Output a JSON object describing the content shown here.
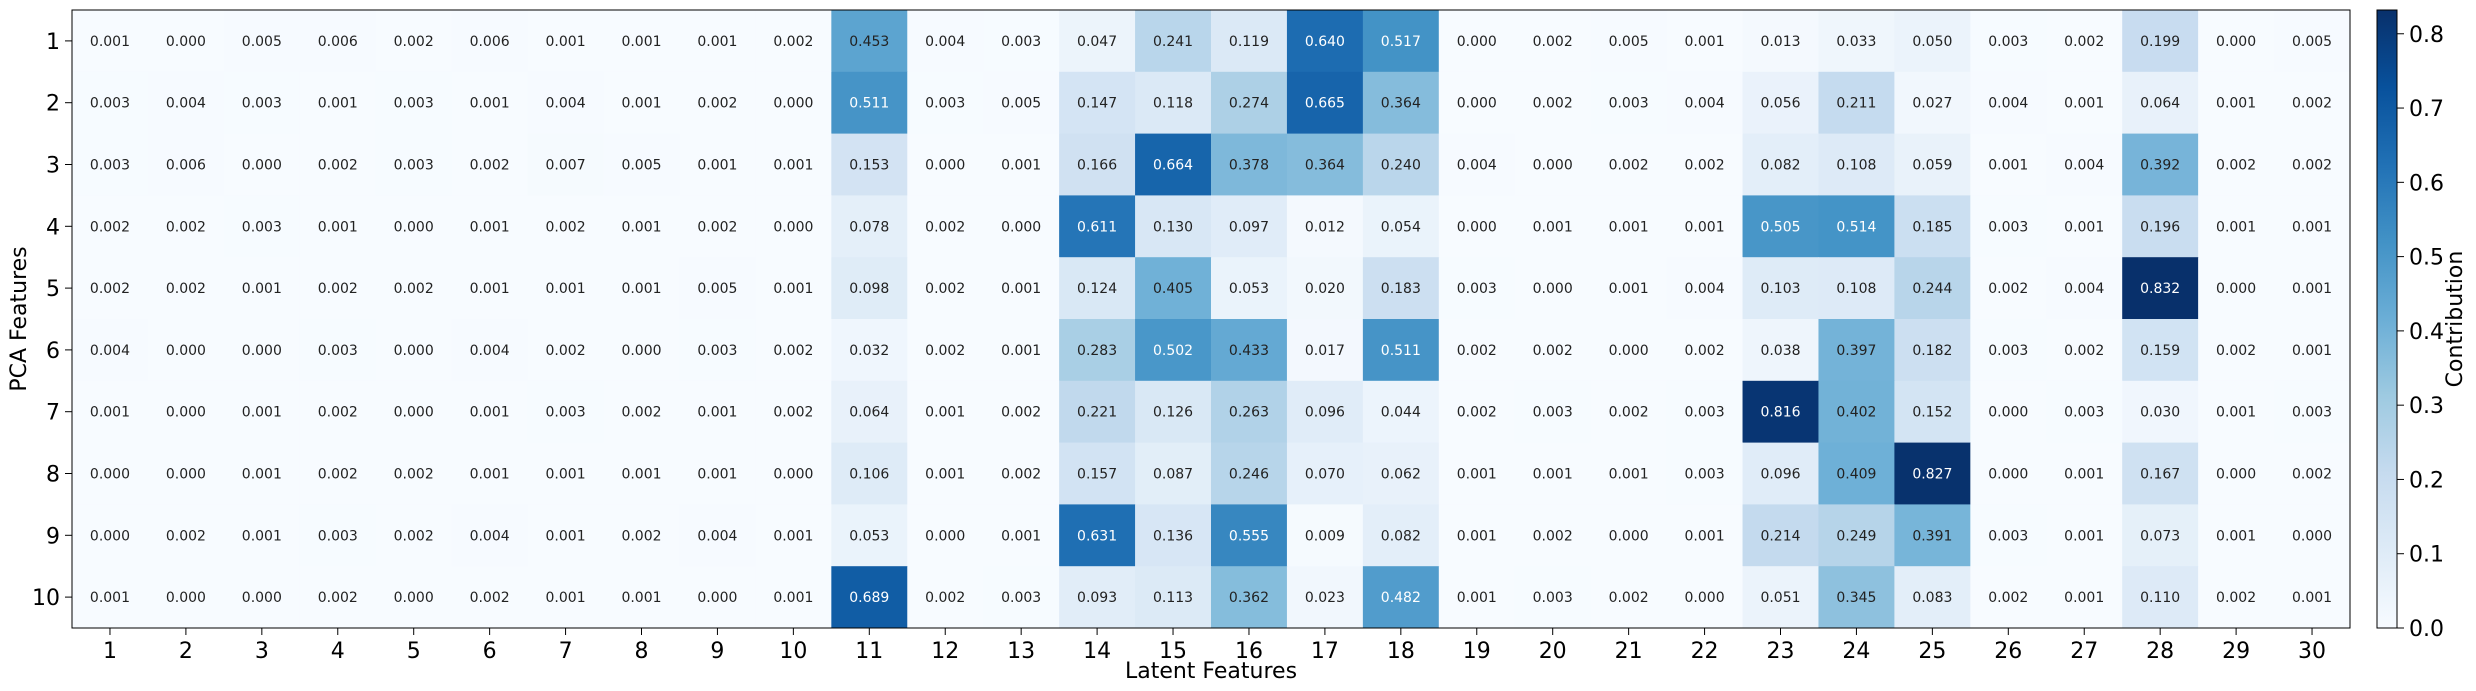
{
  "chart_data": {
    "type": "heatmap",
    "xlabel": "Latent Features",
    "ylabel": "PCA Features",
    "colorbar_label": "Contribution",
    "x_categories": [
      "1",
      "2",
      "3",
      "4",
      "5",
      "6",
      "7",
      "8",
      "9",
      "10",
      "11",
      "12",
      "13",
      "14",
      "15",
      "16",
      "17",
      "18",
      "19",
      "20",
      "21",
      "22",
      "23",
      "24",
      "25",
      "26",
      "27",
      "28",
      "29",
      "30"
    ],
    "y_categories": [
      "1",
      "2",
      "3",
      "4",
      "5",
      "6",
      "7",
      "8",
      "9",
      "10"
    ],
    "colorbar_ticks": [
      "0.0",
      "0.1",
      "0.2",
      "0.3",
      "0.4",
      "0.5",
      "0.6",
      "0.7",
      "0.8"
    ],
    "vmin": 0.0,
    "vmax": 0.832,
    "colormap": [
      "#f7fbff",
      "#deebf7",
      "#c6dbef",
      "#9ecae1",
      "#6baed6",
      "#4292c6",
      "#2171b5",
      "#08519c",
      "#08306b"
    ],
    "values": [
      [
        "0.001",
        "0.000",
        "0.005",
        "0.006",
        "0.002",
        "0.006",
        "0.001",
        "0.001",
        "0.001",
        "0.002",
        "0.453",
        "0.004",
        "0.003",
        "0.047",
        "0.241",
        "0.119",
        "0.640",
        "0.517",
        "0.000",
        "0.002",
        "0.005",
        "0.001",
        "0.013",
        "0.033",
        "0.050",
        "0.003",
        "0.002",
        "0.199",
        "0.000",
        "0.005"
      ],
      [
        "0.003",
        "0.004",
        "0.003",
        "0.001",
        "0.003",
        "0.001",
        "0.004",
        "0.001",
        "0.002",
        "0.000",
        "0.511",
        "0.003",
        "0.005",
        "0.147",
        "0.118",
        "0.274",
        "0.665",
        "0.364",
        "0.000",
        "0.002",
        "0.003",
        "0.004",
        "0.056",
        "0.211",
        "0.027",
        "0.004",
        "0.001",
        "0.064",
        "0.001",
        "0.002"
      ],
      [
        "0.003",
        "0.006",
        "0.000",
        "0.002",
        "0.003",
        "0.002",
        "0.007",
        "0.005",
        "0.001",
        "0.001",
        "0.153",
        "0.000",
        "0.001",
        "0.166",
        "0.664",
        "0.378",
        "0.364",
        "0.240",
        "0.004",
        "0.000",
        "0.002",
        "0.002",
        "0.082",
        "0.108",
        "0.059",
        "0.001",
        "0.004",
        "0.392",
        "0.002",
        "0.002"
      ],
      [
        "0.002",
        "0.002",
        "0.003",
        "0.001",
        "0.000",
        "0.001",
        "0.002",
        "0.001",
        "0.002",
        "0.000",
        "0.078",
        "0.002",
        "0.000",
        "0.611",
        "0.130",
        "0.097",
        "0.012",
        "0.054",
        "0.000",
        "0.001",
        "0.001",
        "0.001",
        "0.505",
        "0.514",
        "0.185",
        "0.003",
        "0.001",
        "0.196",
        "0.001",
        "0.001"
      ],
      [
        "0.002",
        "0.002",
        "0.001",
        "0.002",
        "0.002",
        "0.001",
        "0.001",
        "0.001",
        "0.005",
        "0.001",
        "0.098",
        "0.002",
        "0.001",
        "0.124",
        "0.405",
        "0.053",
        "0.020",
        "0.183",
        "0.003",
        "0.000",
        "0.001",
        "0.004",
        "0.103",
        "0.108",
        "0.244",
        "0.002",
        "0.004",
        "0.832",
        "0.000",
        "0.001"
      ],
      [
        "0.004",
        "0.000",
        "0.000",
        "0.003",
        "0.000",
        "0.004",
        "0.002",
        "0.000",
        "0.003",
        "0.002",
        "0.032",
        "0.002",
        "0.001",
        "0.283",
        "0.502",
        "0.433",
        "0.017",
        "0.511",
        "0.002",
        "0.002",
        "0.000",
        "0.002",
        "0.038",
        "0.397",
        "0.182",
        "0.003",
        "0.002",
        "0.159",
        "0.002",
        "0.001"
      ],
      [
        "0.001",
        "0.000",
        "0.001",
        "0.002",
        "0.000",
        "0.001",
        "0.003",
        "0.002",
        "0.001",
        "0.002",
        "0.064",
        "0.001",
        "0.002",
        "0.221",
        "0.126",
        "0.263",
        "0.096",
        "0.044",
        "0.002",
        "0.003",
        "0.002",
        "0.003",
        "0.816",
        "0.402",
        "0.152",
        "0.000",
        "0.003",
        "0.030",
        "0.001",
        "0.003"
      ],
      [
        "0.000",
        "0.000",
        "0.001",
        "0.002",
        "0.002",
        "0.001",
        "0.001",
        "0.001",
        "0.001",
        "0.000",
        "0.106",
        "0.001",
        "0.002",
        "0.157",
        "0.087",
        "0.246",
        "0.070",
        "0.062",
        "0.001",
        "0.001",
        "0.001",
        "0.003",
        "0.096",
        "0.409",
        "0.827",
        "0.000",
        "0.001",
        "0.167",
        "0.000",
        "0.002"
      ],
      [
        "0.000",
        "0.002",
        "0.001",
        "0.003",
        "0.002",
        "0.004",
        "0.001",
        "0.002",
        "0.004",
        "0.001",
        "0.053",
        "0.000",
        "0.001",
        "0.631",
        "0.136",
        "0.555",
        "0.009",
        "0.082",
        "0.001",
        "0.002",
        "0.000",
        "0.001",
        "0.214",
        "0.249",
        "0.391",
        "0.003",
        "0.001",
        "0.073",
        "0.001",
        "0.000"
      ],
      [
        "0.001",
        "0.000",
        "0.000",
        "0.002",
        "0.000",
        "0.002",
        "0.001",
        "0.001",
        "0.000",
        "0.001",
        "0.689",
        "0.002",
        "0.003",
        "0.093",
        "0.113",
        "0.362",
        "0.023",
        "0.482",
        "0.001",
        "0.003",
        "0.002",
        "0.000",
        "0.051",
        "0.345",
        "0.083",
        "0.002",
        "0.001",
        "0.110",
        "0.002",
        "0.001"
      ]
    ]
  }
}
